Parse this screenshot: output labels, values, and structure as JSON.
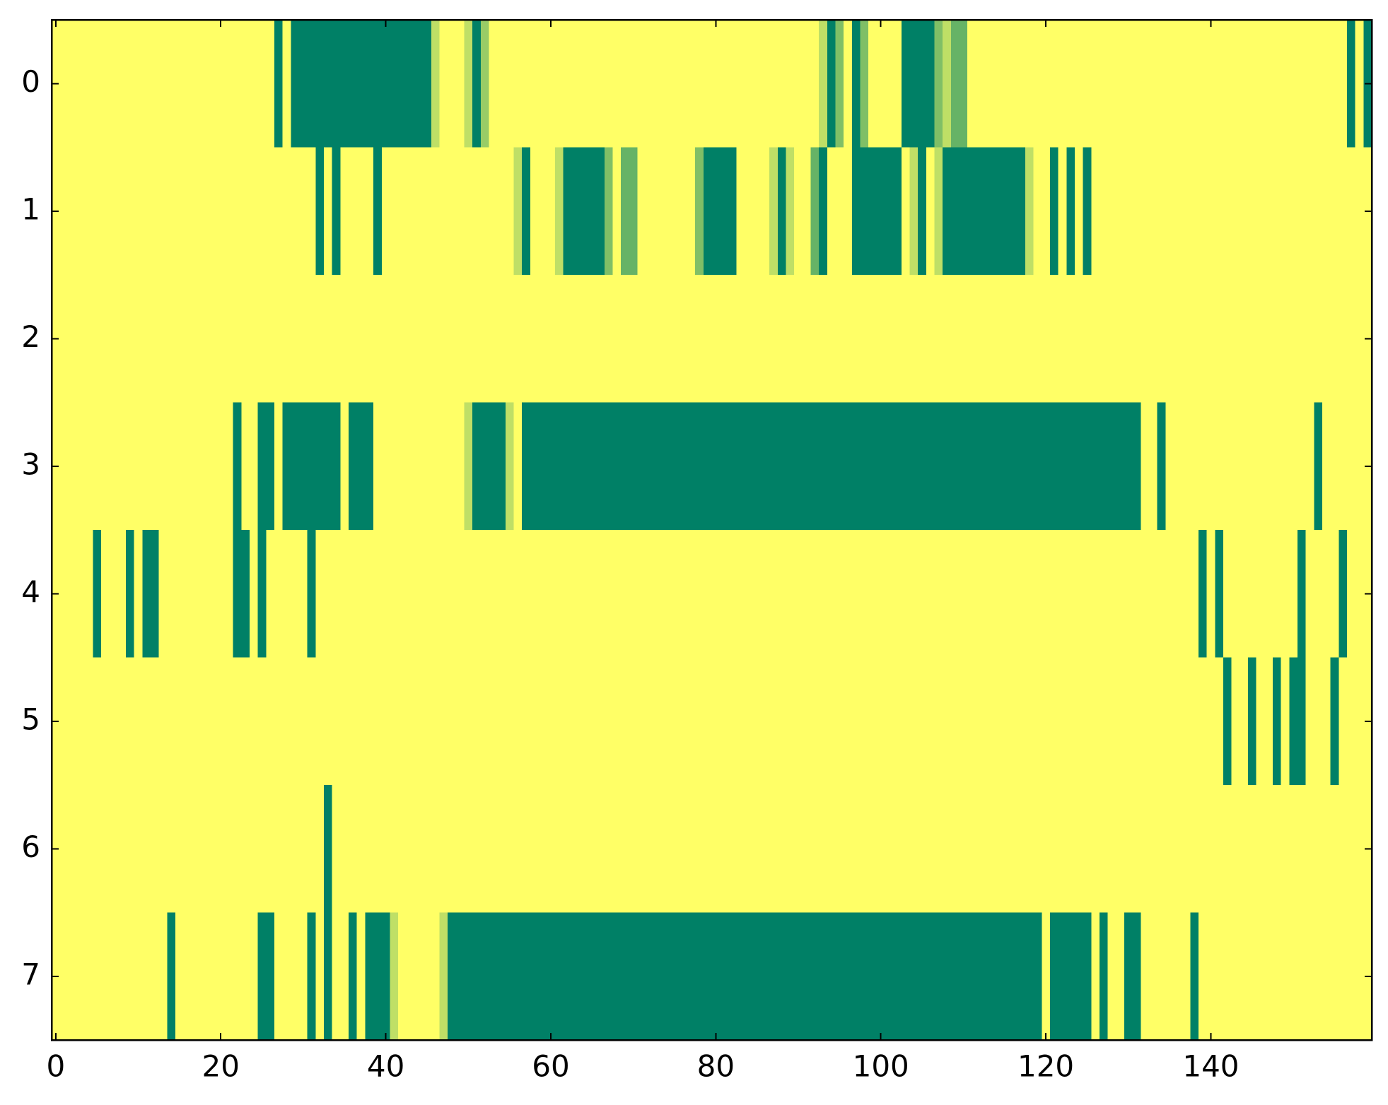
{
  "chart_data": {
    "type": "heatmap",
    "colormap": "summer",
    "xlim": [
      -0.5,
      159.5
    ],
    "ylim": [
      7.5,
      -0.5
    ],
    "xticks": [
      0,
      20,
      40,
      60,
      80,
      100,
      120,
      140
    ],
    "yticks": [
      0,
      1,
      2,
      3,
      4,
      5,
      6,
      7
    ],
    "values": [
      [
        1,
        1,
        1,
        1,
        1,
        1,
        1,
        1,
        1,
        1,
        1,
        1,
        1,
        1,
        1,
        1,
        1,
        1,
        1,
        1,
        1,
        1,
        1,
        1,
        1,
        1,
        1,
        0,
        1,
        0,
        0,
        0,
        0,
        0,
        0,
        0,
        0,
        0,
        0,
        0,
        0,
        0,
        0,
        0,
        0,
        0,
        0.75,
        1,
        1,
        1,
        0.75,
        0,
        0.6,
        1,
        1,
        1,
        1,
        1,
        1,
        1,
        1,
        1,
        1,
        1,
        1,
        1,
        1,
        1,
        1,
        1,
        1,
        1,
        1,
        1,
        1,
        1,
        1,
        1,
        1,
        1,
        1,
        1,
        1,
        1,
        1,
        1,
        1,
        1,
        1,
        1,
        1,
        1,
        1,
        0.75,
        0,
        0.5,
        1,
        0,
        0.5,
        1,
        1,
        1,
        1,
        0,
        0,
        0,
        0,
        0.5,
        0.75,
        0.4,
        0.4,
        1,
        1,
        1,
        1,
        1,
        1,
        1,
        1,
        1,
        1,
        1,
        1,
        1,
        1,
        1,
        1,
        1,
        1,
        1,
        1,
        1,
        1,
        1,
        1,
        1,
        1,
        1,
        1,
        1,
        1,
        1,
        1,
        1,
        1,
        1,
        1,
        1,
        1,
        1,
        1,
        1,
        1,
        1,
        1,
        1,
        1,
        0,
        1,
        0
      ],
      [
        1,
        1,
        1,
        1,
        1,
        1,
        1,
        1,
        1,
        1,
        1,
        1,
        1,
        1,
        1,
        1,
        1,
        1,
        1,
        1,
        1,
        1,
        1,
        1,
        1,
        1,
        1,
        1,
        1,
        1,
        1,
        1,
        0,
        1,
        0,
        1,
        1,
        1,
        1,
        0,
        1,
        1,
        1,
        1,
        1,
        1,
        1,
        1,
        1,
        1,
        1,
        1,
        1,
        1,
        1,
        1,
        0.75,
        0,
        1,
        1,
        1,
        0.75,
        0,
        0,
        0,
        0,
        0,
        0.5,
        1,
        0.4,
        0.4,
        1,
        1,
        1,
        1,
        1,
        1,
        1,
        0.5,
        0,
        0,
        0,
        0,
        1,
        1,
        1,
        1,
        0.75,
        0,
        0.75,
        1,
        1,
        0.4,
        0,
        1,
        1,
        1,
        0,
        0,
        0,
        0,
        0,
        0,
        1,
        0.75,
        0,
        1,
        0.75,
        0,
        0,
        0,
        0,
        0,
        0,
        0,
        0,
        0,
        0,
        0.75,
        1,
        1,
        0,
        1,
        0,
        1,
        0,
        1,
        1,
        1,
        1,
        1,
        1,
        1,
        1,
        1,
        1,
        1,
        1,
        1,
        1,
        1,
        1,
        1,
        1,
        1,
        1,
        1,
        1,
        1,
        1,
        1,
        1,
        1,
        1,
        1,
        1,
        1,
        1,
        1,
        1
      ],
      [
        1,
        1,
        1,
        1,
        1,
        1,
        1,
        1,
        1,
        1,
        1,
        1,
        1,
        1,
        1,
        1,
        1,
        1,
        1,
        1,
        1,
        1,
        1,
        1,
        1,
        1,
        1,
        1,
        1,
        1,
        1,
        1,
        1,
        1,
        1,
        1,
        1,
        1,
        1,
        1,
        1,
        1,
        1,
        1,
        1,
        1,
        1,
        1,
        1,
        1,
        1,
        1,
        1,
        1,
        1,
        1,
        1,
        1,
        1,
        1,
        1,
        1,
        1,
        1,
        1,
        1,
        1,
        1,
        1,
        1,
        1,
        1,
        1,
        1,
        1,
        1,
        1,
        1,
        1,
        1,
        1,
        1,
        1,
        1,
        1,
        1,
        1,
        1,
        1,
        1,
        1,
        1,
        1,
        1,
        1,
        1,
        1,
        1,
        1,
        1,
        1,
        1,
        1,
        1,
        1,
        1,
        1,
        1,
        1,
        1,
        1,
        1,
        1,
        1,
        1,
        1,
        1,
        1,
        1,
        1,
        1,
        1,
        1,
        1,
        1,
        1,
        1,
        1,
        1,
        1,
        1,
        1,
        1,
        1,
        1,
        1,
        1,
        1,
        1,
        1,
        1,
        1,
        1,
        1,
        1,
        1,
        1,
        1,
        1,
        1,
        1,
        1,
        1,
        1,
        1,
        1,
        1,
        1,
        1,
        1
      ],
      [
        1,
        1,
        1,
        1,
        1,
        1,
        1,
        1,
        1,
        1,
        1,
        1,
        1,
        1,
        1,
        1,
        1,
        1,
        1,
        1,
        1,
        1,
        0,
        1,
        1,
        0,
        0,
        1,
        0,
        0,
        0,
        0,
        0,
        0,
        0,
        1,
        0,
        0,
        0,
        1,
        1,
        1,
        1,
        1,
        1,
        1,
        1,
        1,
        1,
        1,
        0.75,
        0,
        0,
        0,
        0,
        0.75,
        1,
        0,
        0,
        0,
        0,
        0,
        0,
        0,
        0,
        0,
        0,
        0,
        0,
        0,
        0,
        0,
        0,
        0,
        0,
        0,
        0,
        0,
        0,
        0,
        0,
        0,
        0,
        0,
        0,
        0,
        0,
        0,
        0,
        0,
        0,
        0,
        0,
        0,
        0,
        0,
        0,
        0,
        0,
        0,
        0,
        0,
        0,
        0,
        0,
        0,
        0,
        0,
        0,
        0,
        0,
        0,
        0,
        0,
        0,
        0,
        0,
        0,
        0,
        0,
        0,
        0,
        0,
        0,
        0,
        0,
        0,
        0,
        0,
        0,
        0,
        0,
        1,
        1,
        0,
        1,
        1,
        1,
        1,
        1,
        1,
        1,
        1,
        1,
        1,
        1,
        1,
        1,
        1,
        1,
        1,
        1,
        1,
        0,
        1,
        1,
        1,
        1,
        1,
        1
      ],
      [
        1,
        1,
        1,
        1,
        1,
        0,
        1,
        1,
        1,
        0,
        1,
        0,
        0,
        1,
        1,
        1,
        1,
        1,
        1,
        1,
        1,
        1,
        0,
        0,
        1,
        0,
        1,
        1,
        1,
        1,
        1,
        0,
        1,
        1,
        1,
        1,
        1,
        1,
        1,
        1,
        1,
        1,
        1,
        1,
        1,
        1,
        1,
        1,
        1,
        1,
        1,
        1,
        1,
        1,
        1,
        1,
        1,
        1,
        1,
        1,
        1,
        1,
        1,
        1,
        1,
        1,
        1,
        1,
        1,
        1,
        1,
        1,
        1,
        1,
        1,
        1,
        1,
        1,
        1,
        1,
        1,
        1,
        1,
        1,
        1,
        1,
        1,
        1,
        1,
        1,
        1,
        1,
        1,
        1,
        1,
        1,
        1,
        1,
        1,
        1,
        1,
        1,
        1,
        1,
        1,
        1,
        1,
        1,
        1,
        1,
        1,
        1,
        1,
        1,
        1,
        1,
        1,
        1,
        1,
        1,
        1,
        1,
        1,
        1,
        1,
        1,
        1,
        1,
        1,
        1,
        1,
        1,
        1,
        1,
        1,
        1,
        1,
        1,
        1,
        0,
        1,
        0,
        1,
        1,
        1,
        1,
        1,
        1,
        1,
        1,
        1,
        0,
        1,
        1,
        1,
        1,
        0,
        1,
        1,
        1
      ],
      [
        1,
        1,
        1,
        1,
        1,
        1,
        1,
        1,
        1,
        1,
        1,
        1,
        1,
        1,
        1,
        1,
        1,
        1,
        1,
        1,
        1,
        1,
        1,
        1,
        1,
        1,
        1,
        1,
        1,
        1,
        1,
        1,
        1,
        1,
        1,
        1,
        1,
        1,
        1,
        1,
        1,
        1,
        1,
        1,
        1,
        1,
        1,
        1,
        1,
        1,
        1,
        1,
        1,
        1,
        1,
        1,
        1,
        1,
        1,
        1,
        1,
        1,
        1,
        1,
        1,
        1,
        1,
        1,
        1,
        1,
        1,
        1,
        1,
        1,
        1,
        1,
        1,
        1,
        1,
        1,
        1,
        1,
        1,
        1,
        1,
        1,
        1,
        1,
        1,
        1,
        1,
        1,
        1,
        1,
        1,
        1,
        1,
        1,
        1,
        1,
        1,
        1,
        1,
        1,
        1,
        1,
        1,
        1,
        1,
        1,
        1,
        1,
        1,
        1,
        1,
        1,
        1,
        1,
        1,
        1,
        1,
        1,
        1,
        1,
        1,
        1,
        1,
        1,
        1,
        1,
        1,
        1,
        1,
        1,
        1,
        1,
        1,
        1,
        1,
        1,
        1,
        1,
        0,
        1,
        1,
        0,
        1,
        1,
        0,
        1,
        0,
        0,
        1,
        1,
        1,
        0,
        1,
        1,
        1,
        1
      ],
      [
        1,
        1,
        1,
        1,
        1,
        1,
        1,
        1,
        1,
        1,
        1,
        1,
        1,
        1,
        1,
        1,
        1,
        1,
        1,
        1,
        1,
        1,
        1,
        1,
        1,
        1,
        1,
        1,
        1,
        1,
        1,
        1,
        1,
        0,
        1,
        1,
        1,
        1,
        1,
        1,
        1,
        1,
        1,
        1,
        1,
        1,
        1,
        1,
        1,
        1,
        1,
        1,
        1,
        1,
        1,
        1,
        1,
        1,
        1,
        1,
        1,
        1,
        1,
        1,
        1,
        1,
        1,
        1,
        1,
        1,
        1,
        1,
        1,
        1,
        1,
        1,
        1,
        1,
        1,
        1,
        1,
        1,
        1,
        1,
        1,
        1,
        1,
        1,
        1,
        1,
        1,
        1,
        1,
        1,
        1,
        1,
        1,
        1,
        1,
        1,
        1,
        1,
        1,
        1,
        1,
        1,
        1,
        1,
        1,
        1,
        1,
        1,
        1,
        1,
        1,
        1,
        1,
        1,
        1,
        1,
        1,
        1,
        1,
        1,
        1,
        1,
        1,
        1,
        1,
        1,
        1,
        1,
        1,
        1,
        1,
        1,
        1,
        1,
        1,
        1,
        1,
        1,
        1,
        1,
        1,
        1,
        1,
        1,
        1,
        1,
        1,
        1,
        1,
        1,
        1,
        1,
        1,
        1,
        1,
        1
      ],
      [
        1,
        1,
        1,
        1,
        1,
        1,
        1,
        1,
        1,
        1,
        1,
        1,
        1,
        1,
        0,
        1,
        1,
        1,
        1,
        1,
        1,
        1,
        1,
        1,
        1,
        0,
        0,
        1,
        1,
        1,
        1,
        0,
        1,
        0,
        1,
        1,
        0,
        1,
        0,
        0,
        0,
        0.75,
        1,
        1,
        1,
        1,
        1,
        0.75,
        0,
        0,
        0,
        0,
        0,
        0,
        0,
        0,
        0,
        0,
        0,
        0,
        0,
        0,
        0,
        0,
        0,
        0,
        0,
        0,
        0,
        0,
        0,
        0,
        0,
        0,
        0,
        0,
        0,
        0,
        0,
        0,
        0,
        0,
        0,
        0,
        0,
        0,
        0,
        0,
        0,
        0,
        0,
        0,
        0,
        0,
        0,
        0,
        0,
        0,
        0,
        0,
        0,
        0,
        0,
        0,
        0,
        0,
        0,
        0,
        0,
        0,
        0,
        0,
        0,
        0,
        0,
        0,
        0,
        0,
        0,
        0,
        1,
        0,
        0,
        0,
        0,
        0,
        1,
        0,
        1,
        1,
        0,
        0,
        1,
        1,
        1,
        1,
        1,
        1,
        0,
        1,
        1,
        1,
        1,
        1,
        1,
        1,
        1,
        1,
        1,
        1,
        1,
        1,
        1,
        1,
        1,
        1,
        1,
        1,
        1,
        1
      ]
    ]
  }
}
